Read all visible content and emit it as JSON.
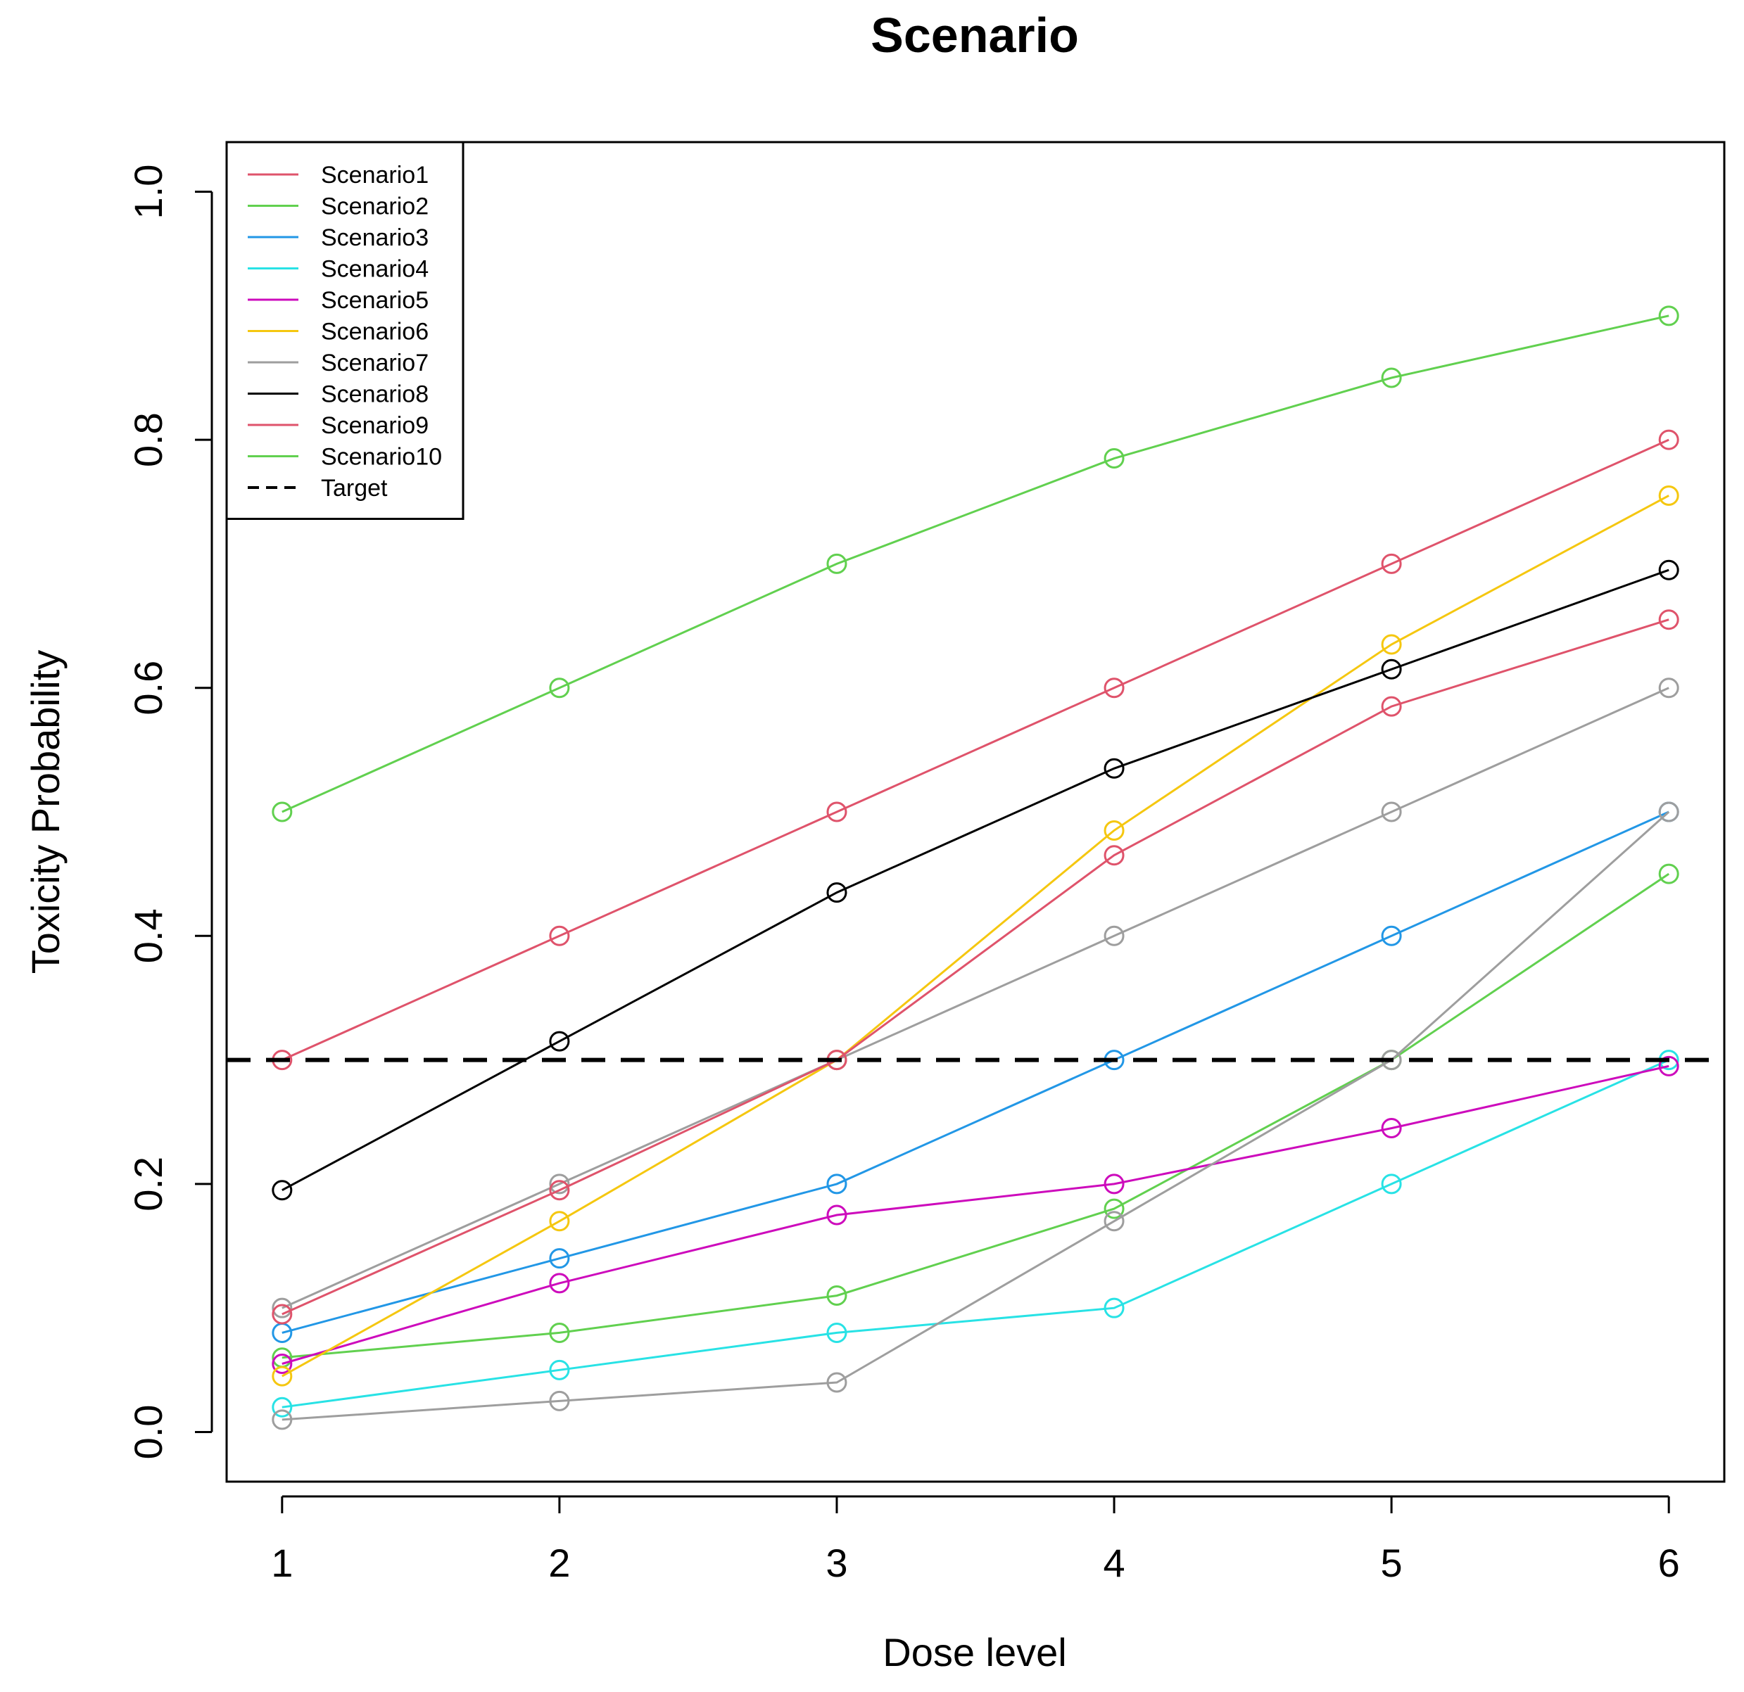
{
  "chart_data": {
    "type": "line",
    "title": "Scenario",
    "xlabel": "Dose level",
    "ylabel": "Toxicity Probability",
    "x": [
      1,
      2,
      3,
      4,
      5,
      6
    ],
    "xlim": [
      0.8,
      6.2
    ],
    "ylim": [
      -0.04,
      1.04
    ],
    "x_ticks": [
      1,
      2,
      3,
      4,
      5,
      6
    ],
    "x_tick_labels": [
      "1",
      "2",
      "3",
      "4",
      "5",
      "6"
    ],
    "y_ticks": [
      0.0,
      0.2,
      0.4,
      0.6,
      0.8,
      1.0
    ],
    "y_tick_labels": [
      "0.0",
      "0.2",
      "0.4",
      "0.6",
      "0.8",
      "1.0"
    ],
    "grid": false,
    "legend_position": "top-left",
    "marker": "open-circle",
    "series": [
      {
        "name": "Scenario1",
        "color": "#DF536B",
        "values": [
          0.3,
          0.4,
          0.5,
          0.6,
          0.7,
          0.8
        ]
      },
      {
        "name": "Scenario2",
        "color": "#61D04F",
        "values": [
          0.06,
          0.08,
          0.11,
          0.18,
          0.3,
          0.45
        ]
      },
      {
        "name": "Scenario3",
        "color": "#2297E6",
        "values": [
          0.08,
          0.14,
          0.2,
          0.3,
          0.4,
          0.5
        ]
      },
      {
        "name": "Scenario4",
        "color": "#28E2E5",
        "values": [
          0.02,
          0.05,
          0.08,
          0.1,
          0.2,
          0.3
        ]
      },
      {
        "name": "Scenario5",
        "color": "#CD0BBC",
        "values": [
          0.055,
          0.12,
          0.175,
          0.2,
          0.245,
          0.295
        ]
      },
      {
        "name": "Scenario6",
        "color": "#F5C710",
        "values": [
          0.045,
          0.17,
          0.3,
          0.485,
          0.635,
          0.755
        ]
      },
      {
        "name": "Scenario7",
        "color": "#9E9E9E",
        "values": [
          0.1,
          0.2,
          0.3,
          0.4,
          0.5,
          0.6
        ]
      },
      {
        "name": "Scenario8",
        "color": "#000000",
        "values": [
          0.195,
          0.315,
          0.435,
          0.535,
          0.615,
          0.695
        ]
      },
      {
        "name": "Scenario9",
        "color": "#DF536B",
        "values": [
          0.095,
          0.195,
          0.3,
          0.465,
          0.585,
          0.655
        ]
      },
      {
        "name": "Scenario10",
        "color": "#61D04F",
        "values": [
          0.5,
          0.6,
          0.7,
          0.785,
          0.85,
          0.9
        ]
      },
      {
        "name": "",
        "color": "#9E9E9E",
        "legend": false,
        "values": [
          0.01,
          0.025,
          0.04,
          0.17,
          0.3,
          0.5
        ]
      }
    ],
    "target": {
      "name": "Target",
      "value": 0.3,
      "style": "dashed",
      "color": "#000000"
    }
  }
}
